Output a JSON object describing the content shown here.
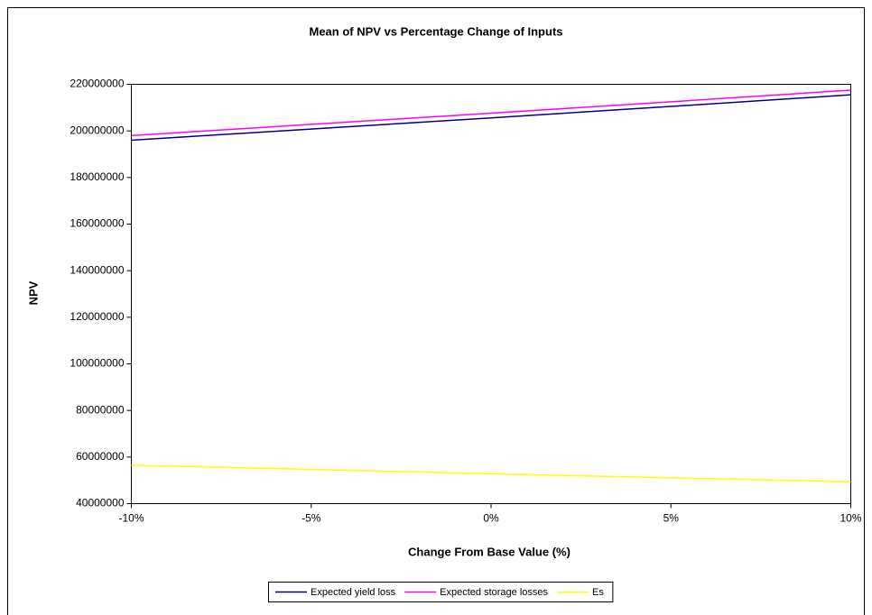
{
  "chart_data": {
    "type": "line",
    "title": "Mean of NPV vs Percentage Change of Inputs",
    "x_label": "Change From Base Value (%)",
    "y_label": "NPV",
    "x": [
      -10,
      -5,
      0,
      5,
      10
    ],
    "xlim": [
      -10,
      10
    ],
    "xticks": [
      {
        "value": -10,
        "label": "-10%"
      },
      {
        "value": -5,
        "label": "-5%"
      },
      {
        "value": 0,
        "label": "0%"
      },
      {
        "value": 5,
        "label": "5%"
      },
      {
        "value": 10,
        "label": "10%"
      }
    ],
    "ylim": [
      40000000,
      220000000
    ],
    "yticks": [
      40000000,
      60000000,
      80000000,
      100000000,
      120000000,
      140000000,
      160000000,
      180000000,
      200000000,
      220000000
    ],
    "series": [
      {
        "name": "Expected yield loss",
        "color": "#000080",
        "values": [
          196000000,
          200800000,
          205600000,
          210500000,
          215500000
        ]
      },
      {
        "name": "Expected storage losses",
        "color": "#ff00ff",
        "values": [
          198000000,
          202800000,
          207600000,
          212500000,
          217500000
        ]
      },
      {
        "name": "Es",
        "color": "#ffff00",
        "values": [
          56500000,
          54700000,
          52800000,
          51100000,
          49400000
        ]
      }
    ],
    "grid": false,
    "legend": "bottom"
  }
}
